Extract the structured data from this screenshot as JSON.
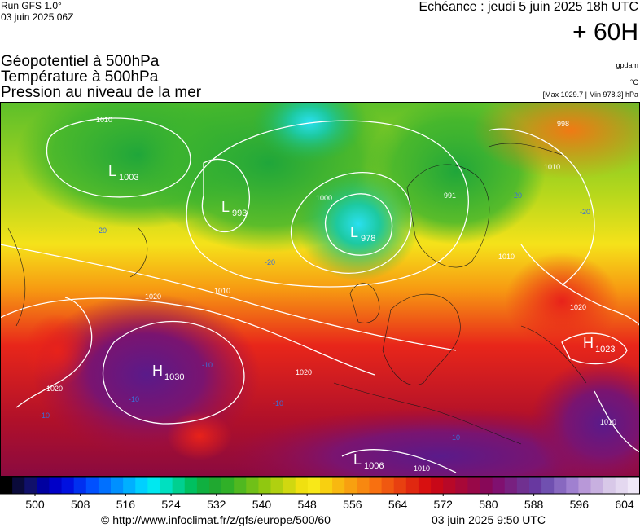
{
  "header": {
    "run": "Run GFS 1.0°",
    "init": "03 juin 2025 06Z",
    "valid": "Echéance : jeudi 5 juin 2025 18h UTC",
    "lead": "+ 60H"
  },
  "layers": [
    "Géopotentiel à 500hPa",
    "Température à 500hPa",
    "Pression au niveau de la mer"
  ],
  "units": {
    "geopotential": "gpdam",
    "temperature": "°C",
    "pressure": "[Max 1029.7 | Min 978.3] hPa"
  },
  "centers": [
    {
      "type": "L",
      "value": "1003"
    },
    {
      "type": "L",
      "value": "993"
    },
    {
      "type": "L",
      "value": "978"
    },
    {
      "type": "H",
      "value": "1030"
    },
    {
      "type": "H",
      "value": "1023"
    },
    {
      "type": "L",
      "value": "1006"
    }
  ],
  "isobar_labels": [
    "1010",
    "1000",
    "1010",
    "1020",
    "1020",
    "1020",
    "1010",
    "1010",
    "1010",
    "1020",
    "1010",
    "991",
    "998"
  ],
  "isotherm_labels": [
    "-20",
    "-20",
    "-10",
    "-10",
    "-10",
    "-10",
    "-10",
    "-20",
    "-20"
  ],
  "colorbar": {
    "ticks": [
      500,
      508,
      516,
      524,
      532,
      540,
      548,
      556,
      564,
      572,
      580,
      588,
      596,
      604
    ]
  },
  "footer": {
    "url": "© http://www.infoclimat.fr/z/gfs/europe/500/60",
    "date": "03 juin 2025  9:50 UTC"
  }
}
